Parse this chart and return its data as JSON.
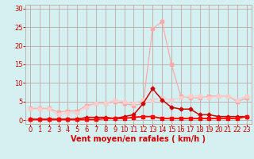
{
  "title": "",
  "xlabel": "Vent moyen/en rafales ( km/h )",
  "ylabel": "",
  "bg_color": "#d4f0f0",
  "grid_color": "#c0a8a8",
  "xlim": [
    -0.5,
    23.5
  ],
  "ylim": [
    -1,
    31
  ],
  "yticks": [
    0,
    5,
    10,
    15,
    20,
    25,
    30
  ],
  "xticks": [
    0,
    1,
    2,
    3,
    4,
    5,
    6,
    7,
    8,
    9,
    10,
    11,
    12,
    13,
    14,
    15,
    16,
    17,
    18,
    19,
    20,
    21,
    22,
    23
  ],
  "line_pink_x": [
    0,
    1,
    2,
    3,
    4,
    5,
    6,
    7,
    8,
    9,
    10,
    11,
    12,
    13,
    14,
    15,
    16,
    17,
    18,
    19,
    20,
    21,
    22,
    23
  ],
  "line_pink_y": [
    3.2,
    3.2,
    3.2,
    2.2,
    2.5,
    2.5,
    4.0,
    4.5,
    4.5,
    5.0,
    4.5,
    4.0,
    4.5,
    24.5,
    26.5,
    15.0,
    6.5,
    6.0,
    6.0,
    6.5,
    6.5,
    6.5,
    5.0,
    6.0
  ],
  "line_pink_color": "#ffaaaa",
  "line_lpink_x": [
    0,
    1,
    2,
    3,
    4,
    5,
    6,
    7,
    8,
    9,
    10,
    11,
    12,
    13,
    14,
    15,
    16,
    17,
    18,
    19,
    20,
    21,
    22,
    23
  ],
  "line_lpink_y": [
    3.0,
    3.0,
    3.0,
    1.5,
    2.0,
    2.0,
    3.5,
    4.5,
    4.5,
    5.5,
    5.0,
    4.5,
    5.5,
    5.5,
    6.0,
    5.5,
    6.0,
    6.5,
    6.5,
    6.0,
    6.5,
    6.5,
    5.5,
    6.5
  ],
  "line_lpink_color": "#ffcccc",
  "line_dark_x": [
    0,
    1,
    2,
    3,
    4,
    5,
    6,
    7,
    8,
    9,
    10,
    11,
    12,
    13,
    14,
    15,
    16,
    17,
    18,
    19,
    20,
    21,
    22,
    23
  ],
  "line_dark_y": [
    0.3,
    0.3,
    0.3,
    0.3,
    0.3,
    0.3,
    0.8,
    0.8,
    0.8,
    0.5,
    1.0,
    1.5,
    4.5,
    8.5,
    5.5,
    3.5,
    3.0,
    3.0,
    1.5,
    1.5,
    1.0,
    1.0,
    1.0,
    1.0
  ],
  "line_dark_color": "#cc0000",
  "line_red_x": [
    0,
    1,
    2,
    3,
    4,
    5,
    6,
    7,
    8,
    9,
    10,
    11,
    12,
    13,
    14,
    15,
    16,
    17,
    18,
    19,
    20,
    21,
    22,
    23
  ],
  "line_red_y": [
    0.2,
    0.2,
    0.2,
    0.2,
    0.2,
    0.2,
    0.2,
    0.2,
    0.5,
    0.5,
    0.5,
    0.8,
    1.0,
    1.0,
    0.5,
    0.5,
    0.5,
    0.5,
    0.5,
    0.5,
    0.5,
    0.5,
    0.5,
    1.0
  ],
  "line_red_color": "#ff0000",
  "marker_size": 2.5,
  "tick_color": "#cc0000",
  "tick_label_color": "#cc0000",
  "xlabel_color": "#cc0000",
  "xlabel_fontsize": 7,
  "tick_fontsize": 6
}
